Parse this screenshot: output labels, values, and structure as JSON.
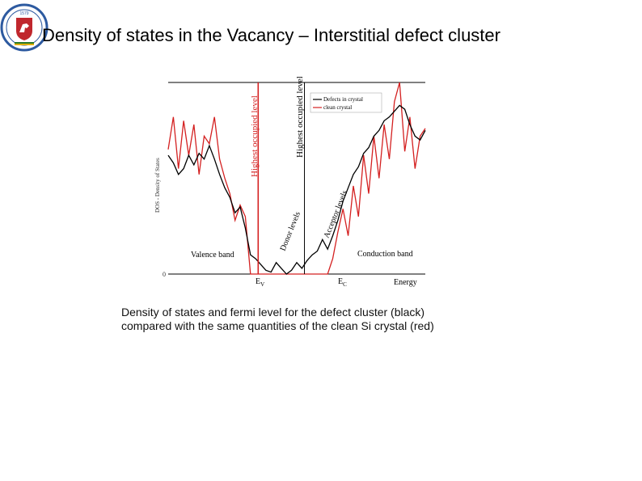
{
  "title": "Density of states in the Vacancy – Interstitial defect cluster",
  "logo": {
    "year": "1579",
    "text_top": "VILNIUS UNIVERSITAS",
    "text_bottom": "UNIVERSITAS VILNENSIS",
    "colors": {
      "ring": "#2d5aa0",
      "shield": "#c0272d",
      "knight": "#ffffff"
    }
  },
  "caption": {
    "line1": "Density of states and fermi level for the defect cluster (black)",
    "line2": "compared with the same quantities of the clean Si crystal (red)"
  },
  "chart_data": {
    "type": "line",
    "ylabel": "DOS - Density of States",
    "xlabel": "Energy",
    "ytick_zero": "0",
    "legend": {
      "position": "top-right",
      "entries": [
        "Defects in crystal",
        "clean crystal"
      ]
    },
    "series": [
      {
        "name": "Defects in crystal",
        "color": "#000000",
        "x": [
          0,
          2,
          4,
          6,
          8,
          10,
          12,
          14,
          16,
          18,
          20,
          22,
          24,
          26,
          28,
          30,
          32,
          34,
          36,
          38,
          40,
          42,
          44,
          46,
          48,
          50,
          52,
          54,
          56,
          58,
          60,
          62,
          64,
          66,
          68,
          70,
          72,
          74,
          76,
          78,
          80,
          82,
          84,
          86,
          88,
          90,
          92,
          94,
          96,
          98,
          100
        ],
        "y": [
          0.62,
          0.58,
          0.52,
          0.55,
          0.62,
          0.57,
          0.63,
          0.6,
          0.67,
          0.6,
          0.52,
          0.45,
          0.4,
          0.32,
          0.35,
          0.24,
          0.1,
          0.08,
          0.05,
          0.02,
          0.01,
          0.06,
          0.03,
          0.0,
          0.02,
          0.06,
          0.03,
          0.07,
          0.1,
          0.12,
          0.18,
          0.13,
          0.2,
          0.28,
          0.38,
          0.45,
          0.52,
          0.56,
          0.63,
          0.66,
          0.72,
          0.75,
          0.8,
          0.82,
          0.85,
          0.88,
          0.86,
          0.78,
          0.72,
          0.7,
          0.75
        ]
      },
      {
        "name": "clean crystal",
        "color": "#d42020",
        "x": [
          0,
          2,
          4,
          6,
          8,
          10,
          12,
          14,
          16,
          18,
          20,
          22,
          24,
          26,
          28,
          30,
          32,
          34,
          36,
          38,
          40,
          42,
          44,
          46,
          48,
          50,
          52,
          54,
          56,
          58,
          60,
          62,
          64,
          66,
          68,
          70,
          72,
          74,
          76,
          78,
          80,
          82,
          84,
          86,
          88,
          90,
          92,
          94,
          96,
          98,
          100
        ],
        "y": [
          0.65,
          0.82,
          0.55,
          0.8,
          0.62,
          0.78,
          0.52,
          0.72,
          0.68,
          0.82,
          0.6,
          0.5,
          0.42,
          0.28,
          0.36,
          0.3,
          0.0,
          0.0,
          0.0,
          0.0,
          0.0,
          0.0,
          0.0,
          0.0,
          0.0,
          0.0,
          0.0,
          0.0,
          0.0,
          0.0,
          0.0,
          0.0,
          0.08,
          0.22,
          0.34,
          0.2,
          0.46,
          0.3,
          0.62,
          0.42,
          0.72,
          0.5,
          0.78,
          0.6,
          0.9,
          1.0,
          0.64,
          0.82,
          0.55,
          0.72,
          0.76
        ]
      }
    ],
    "vlines": [
      {
        "label": "Highest occupied level",
        "color": "#d42020",
        "x": 35
      },
      {
        "label": "Highest occupied level",
        "color": "#000000",
        "x": 53
      }
    ],
    "annotations": [
      "Valence band",
      "Conduction band",
      "Donor levels",
      "Acceptor levels"
    ],
    "x_markers": [
      {
        "label": "E",
        "sub": "V",
        "x": 35
      },
      {
        "label": "E",
        "sub": "C",
        "x": 65
      }
    ],
    "xlim": [
      0,
      100
    ],
    "ylim": [
      0,
      1
    ]
  }
}
